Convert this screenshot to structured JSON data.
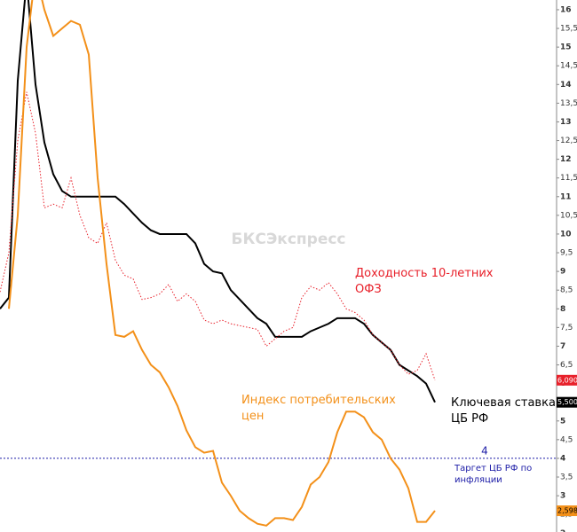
{
  "chart_data": {
    "type": "line",
    "categories": [
      null,
      null,
      null,
      null,
      null,
      null,
      null,
      null,
      null,
      null,
      null,
      null,
      null,
      null,
      null,
      null,
      null,
      null,
      null,
      null,
      null,
      null,
      null,
      null,
      null,
      null,
      null,
      null,
      null,
      null,
      null,
      null,
      null,
      null,
      null,
      null,
      null,
      null,
      null,
      null,
      null,
      null,
      null,
      null,
      null,
      null,
      null,
      null,
      null,
      null
    ],
    "watermark": "БКСЭкспресс",
    "series": [
      {
        "name": "Ключевая ставка ЦБ РФ",
        "color": "#000000",
        "dash": false,
        "values": [
          8.0,
          8.3,
          14.1,
          16.8,
          14.0,
          12.45,
          11.6,
          11.15,
          11.0,
          11.0,
          11.0,
          11.0,
          11.0,
          11.0,
          10.8,
          10.55,
          10.3,
          10.1,
          10.0,
          10.0,
          10.0,
          10.0,
          9.75,
          9.2,
          9.0,
          8.95,
          8.5,
          8.25,
          8.0,
          7.75,
          7.6,
          7.25,
          7.25,
          7.25,
          7.25,
          7.4,
          7.5,
          7.6,
          7.75,
          7.75,
          7.75,
          7.6,
          7.3,
          7.1,
          6.9,
          6.5,
          6.35,
          6.2,
          6.0,
          5.5
        ],
        "value_labels": [
          null,
          null,
          null,
          null,
          null,
          null,
          null,
          null,
          null,
          null,
          null,
          null,
          null,
          null,
          null,
          null,
          null,
          null,
          null,
          null,
          null,
          null,
          null,
          null,
          null,
          null,
          null,
          null,
          null,
          null,
          null,
          null,
          null,
          null,
          null,
          null,
          null,
          null,
          null,
          null,
          null,
          null,
          null,
          null,
          null,
          null,
          null,
          null,
          null,
          "5,500"
        ]
      },
      {
        "name": "Доходность 10-летних ОФЗ",
        "color": "#e8202a",
        "dash": true,
        "values": [
          8.45,
          9.5,
          12.5,
          13.8,
          12.7,
          10.7,
          10.8,
          10.7,
          11.5,
          10.5,
          9.9,
          9.75,
          10.3,
          9.3,
          8.9,
          8.8,
          8.25,
          8.3,
          8.4,
          8.65,
          8.2,
          8.4,
          8.2,
          7.7,
          7.6,
          7.7,
          7.6,
          7.55,
          7.5,
          7.45,
          7.0,
          7.2,
          7.4,
          7.5,
          8.3,
          8.6,
          8.5,
          8.7,
          8.4,
          8.0,
          7.9,
          7.7,
          7.3,
          7.1,
          6.9,
          6.5,
          6.25,
          6.35,
          6.8,
          6.09
        ],
        "value_labels": [
          null,
          null,
          null,
          null,
          null,
          null,
          null,
          null,
          null,
          null,
          null,
          null,
          null,
          null,
          null,
          null,
          null,
          null,
          null,
          null,
          null,
          null,
          null,
          null,
          null,
          null,
          null,
          null,
          null,
          null,
          null,
          null,
          null,
          null,
          null,
          null,
          null,
          null,
          null,
          null,
          null,
          null,
          null,
          null,
          null,
          null,
          null,
          null,
          null,
          "6,090"
        ]
      },
      {
        "name": "Индекс потребительских цен",
        "color": "#f39019",
        "dash": false,
        "values": [
          null,
          8.0,
          10.5,
          15.0,
          17.0,
          16.0,
          15.3,
          15.5,
          15.7,
          15.6,
          14.8,
          11.5,
          9.2,
          7.3,
          7.25,
          7.4,
          6.9,
          6.5,
          6.3,
          5.9,
          5.4,
          4.75,
          4.3,
          4.15,
          4.2,
          3.35,
          3.0,
          2.6,
          2.4,
          2.25,
          2.2,
          2.4,
          2.4,
          2.35,
          2.7,
          3.3,
          3.5,
          3.9,
          4.7,
          5.25,
          5.25,
          5.1,
          4.7,
          4.5,
          4.0,
          3.7,
          3.2,
          2.3,
          2.3,
          2.598
        ],
        "value_labels": [
          null,
          null,
          null,
          null,
          null,
          null,
          null,
          null,
          null,
          null,
          null,
          null,
          null,
          null,
          null,
          null,
          null,
          null,
          null,
          null,
          null,
          null,
          null,
          null,
          null,
          null,
          null,
          null,
          null,
          null,
          null,
          null,
          null,
          null,
          null,
          null,
          null,
          null,
          null,
          null,
          null,
          null,
          null,
          null,
          null,
          null,
          null,
          null,
          null,
          "2,598"
        ]
      }
    ],
    "target": {
      "value": 4,
      "text": "Таргет ЦБ РФ по инфляции",
      "color": "#1a1aa6"
    },
    "ylim": [
      2.03,
      16.26
    ],
    "yticks": [
      2,
      {
        "value": 2.5,
        "label": "2,5"
      },
      3,
      {
        "value": 3.5,
        "label": "3,5"
      },
      4,
      {
        "value": 4.5,
        "label": "4,5"
      },
      5,
      {
        "value": 5.5,
        "label": "5,5"
      },
      6,
      {
        "value": 6.5,
        "label": "6,5"
      },
      7,
      {
        "value": 7.5,
        "label": "7,5"
      },
      8,
      {
        "value": 8.5,
        "label": "8,5"
      },
      9,
      {
        "value": 9.5,
        "label": "9,5"
      },
      10,
      {
        "value": 10.5,
        "label": "10,5"
      },
      11,
      {
        "value": 11.5,
        "label": "11,5"
      },
      12,
      {
        "value": 12.5,
        "label": "12,5"
      },
      13,
      {
        "value": 13.5,
        "label": "13,5"
      },
      14,
      {
        "value": 14.5,
        "label": "14,5"
      },
      15,
      {
        "value": 15.5,
        "label": "15,5"
      },
      16
    ]
  }
}
